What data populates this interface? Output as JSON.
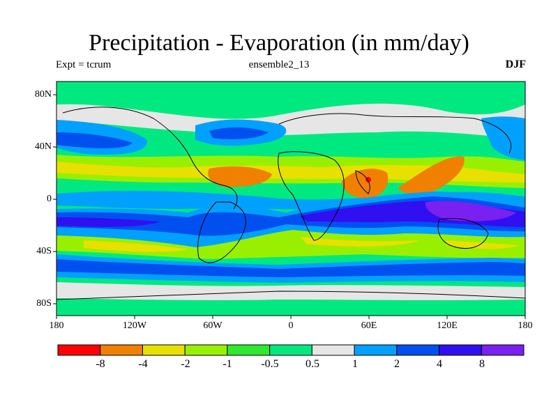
{
  "title": "Precipitation - Evaporation (in mm/day)",
  "subtitle_left": "Expt = tcrum",
  "subtitle_center": "ensemble2_13",
  "subtitle_right": "DJF",
  "lat_labels": [
    "80N",
    "40N",
    "0",
    "40S",
    "80S"
  ],
  "lon_labels": [
    "180",
    "120W",
    "60W",
    "0",
    "60E",
    "120E",
    "180"
  ],
  "colorbar": {
    "labels": [
      "-8",
      "-4",
      "-2",
      "-1",
      "-0.5",
      "0.5",
      "1",
      "2",
      "4",
      "8"
    ],
    "colors": [
      "#ff0000",
      "#f08000",
      "#e8e000",
      "#98f000",
      "#30e830",
      "#00e880",
      "#e6e6e6",
      "#00a0ff",
      "#0050f0",
      "#3010f0",
      "#7a20f0"
    ]
  },
  "field_colors": {
    "ocean_base": "#00e880",
    "neutral": "#e6e6e6",
    "wet_light": "#00a0ff",
    "wet": "#0050f0",
    "wet_strong": "#3010f0",
    "wet_max": "#7a20f0",
    "dry_light": "#30e830",
    "dry": "#98f000",
    "dry_mid": "#e8e000",
    "dry_strong": "#f08000",
    "dry_max": "#ff0000"
  }
}
